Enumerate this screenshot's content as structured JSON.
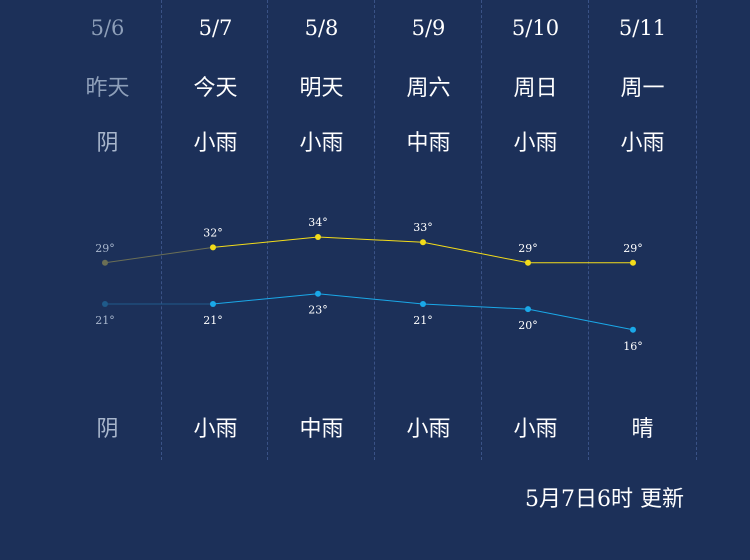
{
  "days": [
    {
      "date": "5/6",
      "day": "昨天",
      "weather_day": "阴",
      "weather_night": "阴",
      "high": "29°",
      "low": "21°",
      "past": true
    },
    {
      "date": "5/7",
      "day": "今天",
      "weather_day": "小雨",
      "weather_night": "小雨",
      "high": "32°",
      "low": "21°",
      "past": false
    },
    {
      "date": "5/8",
      "day": "明天",
      "weather_day": "小雨",
      "weather_night": "中雨",
      "high": "34°",
      "low": "23°",
      "past": false
    },
    {
      "date": "5/9",
      "day": "周六",
      "weather_day": "中雨",
      "weather_night": "小雨",
      "high": "33°",
      "low": "21°",
      "past": false
    },
    {
      "date": "5/10",
      "day": "周日",
      "weather_day": "小雨",
      "weather_night": "小雨",
      "high": "29°",
      "low": "20°",
      "past": false
    },
    {
      "date": "5/11",
      "day": "周一",
      "weather_day": "小雨",
      "weather_night": "晴",
      "high": "29°",
      "low": "16°",
      "past": false
    }
  ],
  "chart_data": {
    "type": "line",
    "categories": [
      "5/6",
      "5/7",
      "5/8",
      "5/9",
      "5/10",
      "5/11"
    ],
    "series": [
      {
        "values": [
          29,
          32,
          34,
          33,
          29,
          29
        ]
      },
      {
        "values": [
          21,
          21,
          23,
          21,
          20,
          16
        ]
      }
    ],
    "ylim": [
      16,
      34
    ]
  },
  "colors": {
    "background": "#1c3059",
    "high_line": "#f3dc1a",
    "low_line": "#1aa8e8",
    "past_text": "#8e9fb9"
  },
  "footer": {
    "updated": "5月7日6时 更新"
  }
}
